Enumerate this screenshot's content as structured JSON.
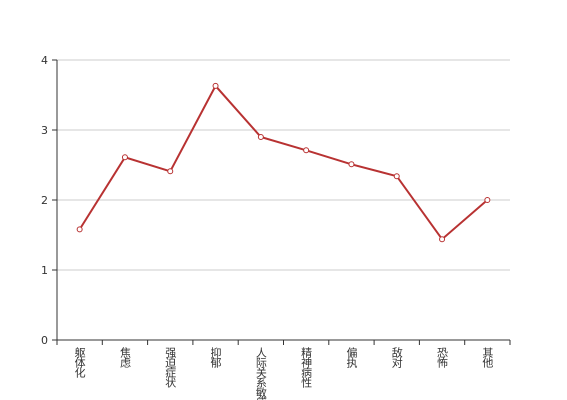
{
  "chart_data": {
    "type": "line",
    "categories": [
      "躯体化",
      "焦虑",
      "强迫症状",
      "抑郁",
      "人际关系敏感",
      "精神病性",
      "偏执",
      "敌对",
      "恐怖",
      "其他"
    ],
    "values": [
      1.58,
      2.61,
      2.41,
      3.63,
      2.9,
      2.71,
      2.51,
      2.34,
      1.44,
      2.0
    ],
    "color": "#b83232",
    "ylim": [
      0,
      4
    ],
    "yticks": [
      0,
      1,
      2,
      3,
      4
    ],
    "grid": true
  }
}
